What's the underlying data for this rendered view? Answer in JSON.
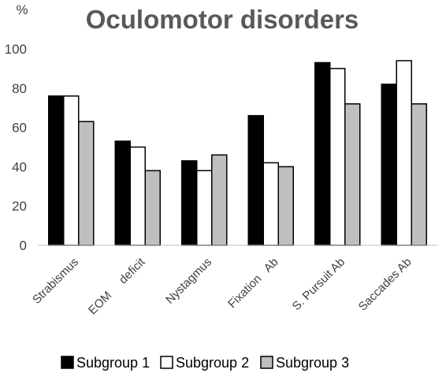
{
  "chart_data": {
    "type": "bar",
    "title": "Oculomotor disorders",
    "ylabel": "%",
    "xlabel": "",
    "ylim": [
      0,
      100
    ],
    "yticks": [
      0,
      20,
      40,
      60,
      80,
      100
    ],
    "grid": false,
    "legend_position": "bottom",
    "categories": [
      "Strabismus",
      "EOM     deficit",
      "Nystagmus",
      "Fixation   Ab",
      "S. Pursuit Ab",
      "Saccades Ab"
    ],
    "series": [
      {
        "name": "Subgroup 1",
        "color": "#000000",
        "values": [
          76,
          53,
          43,
          66,
          93,
          82
        ]
      },
      {
        "name": "Subgroup 2",
        "color": "#ffffff",
        "values": [
          76,
          50,
          38,
          42,
          90,
          94
        ]
      },
      {
        "name": "Subgroup 3",
        "color": "#bfbfbf",
        "values": [
          63,
          38,
          46,
          40,
          72,
          72
        ]
      }
    ]
  }
}
